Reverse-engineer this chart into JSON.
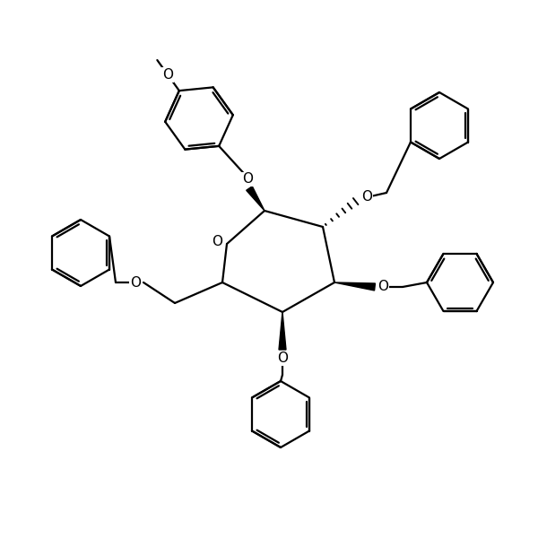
{
  "bg_color": "#ffffff",
  "line_color": "#000000",
  "line_width": 1.6,
  "figsize": [
    6.0,
    6.0
  ],
  "dpi": 100,
  "ring_O_label": "O",
  "sub_O_label": "O",
  "font_size": 10
}
